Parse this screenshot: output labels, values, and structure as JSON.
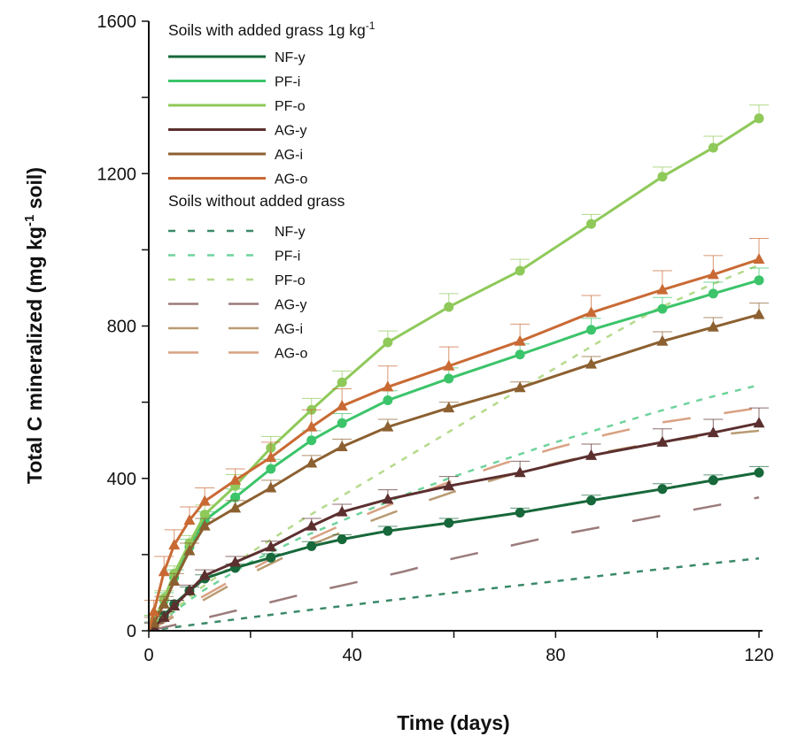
{
  "chart_data": {
    "type": "line",
    "title": "",
    "xlabel": "Time (days)",
    "ylabel": {
      "main": "Total C mineralized (mg kg",
      "sup": "-1",
      "end": " soil)"
    },
    "xlim": [
      0,
      120
    ],
    "ylim": [
      0,
      1600
    ],
    "xticks": [
      0,
      40,
      80,
      120
    ],
    "yticks": [
      0,
      400,
      800,
      1200,
      1600
    ],
    "grid": false,
    "legend_placement": "top-left",
    "legend_groups": [
      {
        "title": "Soils with added grass 1g kg",
        "title_sup": "-1"
      },
      {
        "title": "Soils without added grass"
      }
    ],
    "x": [
      1,
      3,
      5,
      8,
      11,
      17,
      24,
      32,
      38,
      47,
      59,
      73,
      87,
      101,
      111,
      120
    ],
    "series": [
      {
        "name": "NF-y",
        "group": 0,
        "color": "#17683a",
        "marker": "circle",
        "values": [
          15,
          40,
          70,
          105,
          137,
          165,
          192,
          222,
          240,
          262,
          283,
          310,
          342,
          372,
          395,
          415
        ],
        "error": [
          8,
          10,
          10,
          10,
          10,
          10,
          10,
          12,
          12,
          12,
          12,
          12,
          14,
          14,
          14,
          16
        ]
      },
      {
        "name": "PF-i",
        "group": 0,
        "color": "#3cc46a",
        "marker": "circle",
        "values": [
          25,
          80,
          140,
          220,
          290,
          350,
          425,
          500,
          545,
          605,
          662,
          725,
          790,
          845,
          885,
          920
        ],
        "error": [
          15,
          20,
          20,
          20,
          22,
          22,
          25,
          25,
          25,
          25,
          28,
          28,
          30,
          30,
          30,
          32
        ]
      },
      {
        "name": "PF-o",
        "group": 0,
        "color": "#8fc95a",
        "marker": "circle",
        "values": [
          25,
          85,
          150,
          230,
          305,
          380,
          480,
          580,
          652,
          757,
          850,
          945,
          1068,
          1192,
          1268,
          1345
        ],
        "error": [
          15,
          20,
          20,
          20,
          25,
          30,
          30,
          30,
          30,
          30,
          35,
          30,
          25,
          25,
          30,
          35
        ]
      },
      {
        "name": "AG-y",
        "group": 0,
        "color": "#5c2f2f",
        "marker": "triangle",
        "values": [
          10,
          35,
          65,
          105,
          145,
          180,
          220,
          275,
          312,
          345,
          380,
          415,
          460,
          495,
          520,
          545
        ],
        "error": [
          10,
          15,
          15,
          15,
          15,
          15,
          15,
          20,
          20,
          25,
          25,
          30,
          30,
          35,
          35,
          40
        ]
      },
      {
        "name": "AG-i",
        "group": 0,
        "color": "#8c6030",
        "marker": "triangle",
        "values": [
          20,
          70,
          130,
          210,
          275,
          322,
          375,
          440,
          483,
          535,
          585,
          638,
          700,
          760,
          797,
          830
        ],
        "error": [
          15,
          20,
          20,
          20,
          20,
          20,
          20,
          20,
          20,
          20,
          15,
          15,
          20,
          25,
          25,
          30
        ]
      },
      {
        "name": "AG-o",
        "group": 0,
        "color": "#c96a34",
        "marker": "triangle",
        "values": [
          50,
          155,
          225,
          290,
          340,
          395,
          455,
          535,
          590,
          640,
          695,
          760,
          835,
          895,
          935,
          975
        ],
        "error": [
          30,
          40,
          40,
          35,
          35,
          30,
          40,
          45,
          45,
          55,
          50,
          45,
          45,
          50,
          50,
          55
        ]
      },
      {
        "name": "NF-y",
        "group": 1,
        "color": "#3a8a68",
        "dash": "short",
        "x": [
          0,
          10,
          20,
          30,
          40,
          50,
          60,
          70,
          80,
          90,
          100,
          110,
          120
        ],
        "values": [
          0,
          18,
          35,
          52,
          68,
          84,
          100,
          115,
          130,
          146,
          161,
          176,
          190
        ]
      },
      {
        "name": "PF-i",
        "group": 1,
        "color": "#6fd39c",
        "dash": "short",
        "x": [
          0,
          10,
          20,
          30,
          40,
          50,
          60,
          70,
          80,
          90,
          100,
          110,
          120
        ],
        "values": [
          0,
          100,
          180,
          245,
          300,
          355,
          405,
          450,
          495,
          535,
          575,
          612,
          645
        ]
      },
      {
        "name": "PF-o",
        "group": 1,
        "color": "#b6da8c",
        "dash": "short",
        "x": [
          0,
          10,
          20,
          30,
          40,
          50,
          60,
          70,
          80,
          90,
          100,
          110,
          120
        ],
        "values": [
          0,
          110,
          205,
          290,
          370,
          450,
          530,
          610,
          690,
          770,
          845,
          905,
          960
        ]
      },
      {
        "name": "AG-y",
        "group": 1,
        "color": "#9b7b7b",
        "dash": "long",
        "x": [
          0,
          10,
          20,
          30,
          40,
          50,
          60,
          70,
          80,
          90,
          100,
          110,
          120
        ],
        "values": [
          0,
          30,
          62,
          95,
          125,
          155,
          190,
          220,
          250,
          275,
          300,
          325,
          350
        ]
      },
      {
        "name": "AG-i",
        "group": 1,
        "color": "#b99b72",
        "dash": "long",
        "x": [
          0,
          10,
          20,
          30,
          40,
          50,
          60,
          70,
          80,
          90,
          100,
          110,
          120
        ],
        "values": [
          0,
          75,
          150,
          215,
          270,
          320,
          365,
          405,
          440,
          470,
          495,
          512,
          525
        ]
      },
      {
        "name": "AG-o",
        "group": 1,
        "color": "#d9a183",
        "dash": "long",
        "x": [
          0,
          10,
          20,
          30,
          40,
          50,
          60,
          70,
          80,
          90,
          100,
          110,
          120
        ],
        "values": [
          0,
          85,
          160,
          230,
          290,
          345,
          395,
          440,
          480,
          515,
          545,
          565,
          585
        ]
      }
    ]
  }
}
